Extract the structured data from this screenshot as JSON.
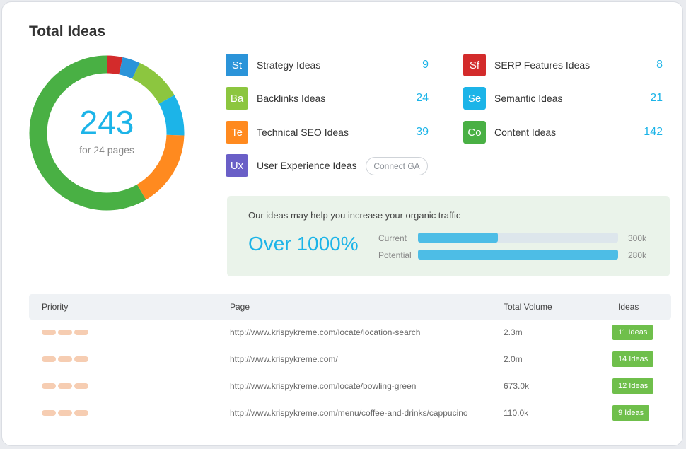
{
  "title": "Total Ideas",
  "donut": {
    "total": "243",
    "subtitle": "for 24 pages",
    "segments": [
      {
        "name": "SERP Features Ideas",
        "value": 8,
        "color": "#d32b2b"
      },
      {
        "name": "Strategy Ideas",
        "value": 9,
        "color": "#2b94d9"
      },
      {
        "name": "Backlinks Ideas",
        "value": 24,
        "color": "#8cc63f"
      },
      {
        "name": "Semantic Ideas",
        "value": 21,
        "color": "#1cb4e8"
      },
      {
        "name": "Technical SEO Ideas",
        "value": 39,
        "color": "#ff8a1f"
      },
      {
        "name": "Content Ideas",
        "value": 142,
        "color": "#49b044"
      }
    ]
  },
  "categories": [
    {
      "abbr": "St",
      "label": "Strategy Ideas",
      "count": "9",
      "color": "#2b94d9"
    },
    {
      "abbr": "Ba",
      "label": "Backlinks Ideas",
      "count": "24",
      "color": "#8cc63f"
    },
    {
      "abbr": "Te",
      "label": "Technical SEO Ideas",
      "count": "39",
      "color": "#ff8a1f"
    },
    {
      "abbr": "Ux",
      "label": "User Experience Ideas",
      "count": "",
      "color": "#6a5fc7"
    },
    {
      "abbr": "Sf",
      "label": "SERP Features Ideas",
      "count": "8",
      "color": "#d32b2b"
    },
    {
      "abbr": "Se",
      "label": "Semantic Ideas",
      "count": "21",
      "color": "#1cb4e8"
    },
    {
      "abbr": "Co",
      "label": "Content Ideas",
      "count": "142",
      "color": "#49b044"
    }
  ],
  "connect_ga": "Connect GA",
  "traffic": {
    "headline": "Our ideas may help you increase your organic traffic",
    "big": "Over 1000%",
    "bars": [
      {
        "label": "Current",
        "value": "300k",
        "fill_fraction": 0.4
      },
      {
        "label": "Potential",
        "value": "280k",
        "fill_fraction": 1.0
      }
    ]
  },
  "table": {
    "headers": {
      "priority": "Priority",
      "page": "Page",
      "volume": "Total Volume",
      "ideas": "Ideas"
    },
    "rows": [
      {
        "page": "http://www.krispykreme.com/locate/location-search",
        "volume": "2.3m",
        "ideas": "11 Ideas"
      },
      {
        "page": "http://www.krispykreme.com/",
        "volume": "2.0m",
        "ideas": "14 Ideas"
      },
      {
        "page": "http://www.krispykreme.com/locate/bowling-green",
        "volume": "673.0k",
        "ideas": "12 Ideas"
      },
      {
        "page": "http://www.krispykreme.com/menu/coffee-and-drinks/cappucino",
        "volume": "110.0k",
        "ideas": "9 Ideas"
      }
    ]
  }
}
